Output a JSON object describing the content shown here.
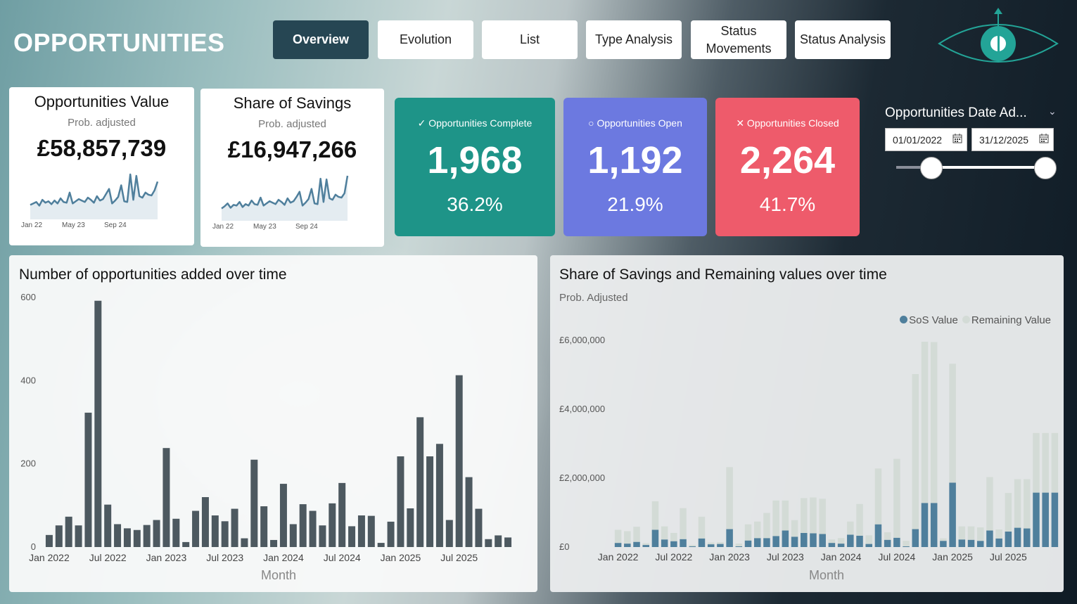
{
  "app_title": "OPPORTUNITIES",
  "nav": {
    "tabs": [
      {
        "label": "Overview",
        "active": true
      },
      {
        "label": "Evolution",
        "active": false
      },
      {
        "label": "List",
        "active": false
      },
      {
        "label": "Type Analysis",
        "active": false
      },
      {
        "label": "Status Movements",
        "active": false
      },
      {
        "label": "Status Analysis",
        "active": false
      }
    ]
  },
  "logo_icon": "eye-icon",
  "cards": {
    "opportunities_value": {
      "title": "Opportunities Value",
      "subtitle": "Prob. adjusted",
      "value": "£58,857,739",
      "x_labels": [
        "Jan 22",
        "May 23",
        "Sep 24"
      ],
      "spark": [
        18,
        20,
        22,
        17,
        25,
        21,
        23,
        19,
        24,
        20,
        27,
        22,
        21,
        35,
        20,
        23,
        26,
        24,
        22,
        28,
        25,
        21,
        30,
        24,
        26,
        33,
        40,
        20,
        24,
        29,
        45,
        23,
        22,
        60,
        25,
        58,
        30,
        28,
        35,
        32,
        31,
        38,
        50
      ]
    },
    "share_of_savings": {
      "title": "Share of Savings",
      "subtitle": "Prob. adjusted",
      "value": "£16,947,266",
      "x_labels": [
        "Jan 22",
        "May 23",
        "Sep 24"
      ],
      "spark": [
        15,
        18,
        22,
        16,
        20,
        19,
        24,
        17,
        21,
        19,
        26,
        21,
        20,
        30,
        19,
        22,
        25,
        23,
        21,
        27,
        24,
        20,
        29,
        23,
        25,
        31,
        38,
        19,
        23,
        28,
        42,
        22,
        21,
        56,
        24,
        55,
        29,
        27,
        34,
        31,
        30,
        36,
        60
      ]
    }
  },
  "kpis": [
    {
      "label": "✓ Opportunities Complete",
      "value": "1,968",
      "percent": "36.2%",
      "color": "#1e9488"
    },
    {
      "label": "○ Opportunities Open",
      "value": "1,192",
      "percent": "21.9%",
      "color": "#6c79e0"
    },
    {
      "label": "✕ Opportunities Closed",
      "value": "2,264",
      "percent": "41.7%",
      "color": "#ee5b6b"
    }
  ],
  "date_slicer": {
    "title": "Opportunities Date Ad...",
    "start": "01/01/2022",
    "end": "31/12/2025",
    "range_start_fraction": 0.0,
    "range_end_fraction": 1.0
  },
  "chart_data": [
    {
      "type": "bar",
      "title": "Number of opportunities added over time",
      "xlabel": "Month",
      "ylabel": "",
      "ylim": [
        0,
        600
      ],
      "yticks": [
        0,
        200,
        400,
        600
      ],
      "x_tick_labels": [
        {
          "index": 0,
          "label": "Jan 2022"
        },
        {
          "index": 6,
          "label": "Jul 2022"
        },
        {
          "index": 12,
          "label": "Jan 2023"
        },
        {
          "index": 18,
          "label": "Jul 2023"
        },
        {
          "index": 24,
          "label": "Jan 2024"
        },
        {
          "index": 30,
          "label": "Jul 2024"
        },
        {
          "index": 36,
          "label": "Jan 2025"
        },
        {
          "index": 42,
          "label": "Jul 2025"
        }
      ],
      "categories": [
        "Jan 2022",
        "Feb 2022",
        "Mar 2022",
        "Apr 2022",
        "May 2022",
        "Jun 2022",
        "Jul 2022",
        "Aug 2022",
        "Sep 2022",
        "Oct 2022",
        "Nov 2022",
        "Dec 2022",
        "Jan 2023",
        "Feb 2023",
        "Mar 2023",
        "Apr 2023",
        "May 2023",
        "Jun 2023",
        "Jul 2023",
        "Aug 2023",
        "Sep 2023",
        "Oct 2023",
        "Nov 2023",
        "Dec 2023",
        "Jan 2024",
        "Feb 2024",
        "Mar 2024",
        "Apr 2024",
        "May 2024",
        "Jun 2024",
        "Jul 2024",
        "Aug 2024",
        "Sep 2024",
        "Oct 2024",
        "Nov 2024",
        "Dec 2024",
        "Jan 2025",
        "Feb 2025",
        "Mar 2025",
        "Apr 2025",
        "May 2025",
        "Jun 2025",
        "Jul 2025",
        "Aug 2025",
        "Sep 2025",
        "Oct 2025",
        "Nov 2025",
        "Dec 2025"
      ],
      "values": [
        29,
        52,
        73,
        52,
        323,
        592,
        102,
        55,
        45,
        41,
        53,
        65,
        238,
        68,
        12,
        87,
        120,
        76,
        62,
        92,
        21,
        210,
        98,
        17,
        152,
        55,
        103,
        87,
        52,
        105,
        154,
        50,
        76,
        75,
        10,
        61,
        218,
        93,
        312,
        218,
        248,
        65,
        413,
        168,
        92,
        19,
        28,
        23
      ],
      "color": "#4d5960"
    },
    {
      "type": "bar",
      "stacked": true,
      "title": "Share of Savings and Remaining values over time",
      "subtitle": "Prob. Adjusted",
      "xlabel": "Month",
      "ylabel": "",
      "ylim": [
        0,
        6000000
      ],
      "yticks": [
        0,
        2000000,
        4000000,
        6000000
      ],
      "ytick_labels": [
        "£0",
        "£2,000,000",
        "£4,000,000",
        "£6,000,000"
      ],
      "legend_position": "top-right",
      "x_tick_labels": [
        {
          "index": 0,
          "label": "Jan 2022"
        },
        {
          "index": 6,
          "label": "Jul 2022"
        },
        {
          "index": 12,
          "label": "Jan 2023"
        },
        {
          "index": 18,
          "label": "Jul 2023"
        },
        {
          "index": 24,
          "label": "Jan 2024"
        },
        {
          "index": 30,
          "label": "Jul 2024"
        },
        {
          "index": 36,
          "label": "Jan 2025"
        },
        {
          "index": 42,
          "label": "Jul 2025"
        }
      ],
      "categories": [
        "Jan 2022",
        "Feb 2022",
        "Mar 2022",
        "Apr 2022",
        "May 2022",
        "Jun 2022",
        "Jul 2022",
        "Aug 2022",
        "Sep 2022",
        "Oct 2022",
        "Nov 2022",
        "Dec 2022",
        "Jan 2023",
        "Feb 2023",
        "Mar 2023",
        "Apr 2023",
        "May 2023",
        "Jun 2023",
        "Jul 2023",
        "Aug 2023",
        "Sep 2023",
        "Oct 2023",
        "Nov 2023",
        "Dec 2023",
        "Jan 2024",
        "Feb 2024",
        "Mar 2024",
        "Apr 2024",
        "May 2024",
        "Jun 2024",
        "Jul 2024",
        "Aug 2024",
        "Sep 2024",
        "Oct 2024",
        "Nov 2024",
        "Dec 2024",
        "Jan 2025",
        "Feb 2025",
        "Mar 2025",
        "Apr 2025",
        "May 2025",
        "Jun 2025",
        "Jul 2025",
        "Aug 2025",
        "Sep 2025",
        "Oct 2025",
        "Nov 2025",
        "Dec 2025"
      ],
      "series": [
        {
          "name": "SoS Value",
          "color": "#4f7f9c",
          "values": [
            120000,
            100000,
            150000,
            60000,
            500000,
            220000,
            170000,
            230000,
            20000,
            250000,
            80000,
            90000,
            520000,
            20000,
            190000,
            260000,
            260000,
            320000,
            480000,
            300000,
            410000,
            400000,
            380000,
            120000,
            100000,
            360000,
            330000,
            90000,
            660000,
            210000,
            270000,
            20000,
            520000,
            1280000,
            1280000,
            180000,
            1870000,
            220000,
            210000,
            180000,
            480000,
            250000,
            450000,
            560000,
            540000,
            1580000,
            1580000,
            1580000
          ]
        },
        {
          "name": "Remaining Value",
          "color": "#d3dbd6",
          "values": [
            380000,
            360000,
            440000,
            50000,
            830000,
            380000,
            240000,
            900000,
            40000,
            630000,
            50000,
            50000,
            1800000,
            80000,
            470000,
            480000,
            730000,
            1030000,
            870000,
            480000,
            1010000,
            1040000,
            1020000,
            100000,
            160000,
            380000,
            920000,
            250000,
            1620000,
            220000,
            2290000,
            160000,
            4500000,
            4680000,
            4670000,
            70000,
            3450000,
            380000,
            390000,
            390000,
            1550000,
            260000,
            1120000,
            1410000,
            1430000,
            1730000,
            1730000,
            1730000
          ]
        }
      ]
    }
  ]
}
